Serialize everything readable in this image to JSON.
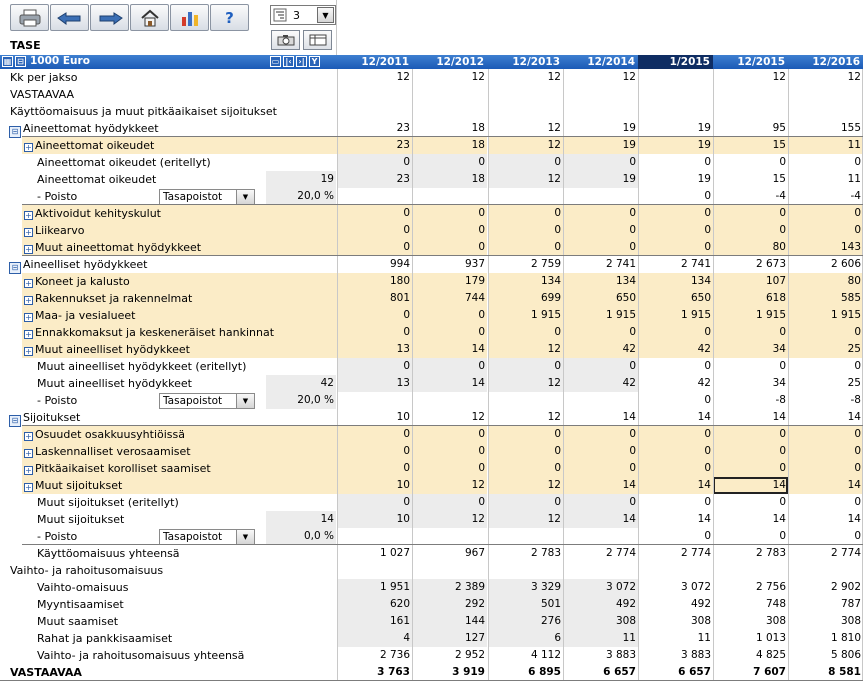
{
  "toolbar": {
    "buttons": [
      {
        "name": "print-button",
        "icon": "printer-icon"
      },
      {
        "name": "back-button",
        "icon": "hand-left-icon"
      },
      {
        "name": "forward-button",
        "icon": "hand-right-icon"
      },
      {
        "name": "home-button",
        "icon": "home-icon"
      },
      {
        "name": "chart-button",
        "icon": "bar-chart-icon"
      },
      {
        "name": "help-button",
        "icon": "help-icon",
        "label": "?"
      }
    ],
    "level_value": "3"
  },
  "title": "TASE",
  "header": {
    "unit": "1000 Euro",
    "columns": [
      "12/2011",
      "12/2012",
      "12/2013",
      "12/2014",
      "1/2015",
      "12/2015",
      "12/2016"
    ]
  },
  "rows": [
    {
      "label": "Kk per jakso",
      "indent": 0,
      "values": [
        "12",
        "12",
        "12",
        "12",
        "",
        "12",
        "12"
      ]
    },
    {
      "label": "VASTAAVAA",
      "indent": 0,
      "values": [
        "",
        "",
        "",
        "",
        "",
        "",
        ""
      ]
    },
    {
      "label": "Käyttöomaisuus ja muut pitkäaikaiset sijoitukset",
      "indent": 0,
      "values": [
        "",
        "",
        "",
        "",
        "",
        "",
        ""
      ]
    },
    {
      "label": "Aineettomat hyödykkeet",
      "indent": 0,
      "icon": "collapse",
      "values": [
        "23",
        "18",
        "12",
        "19",
        "19",
        "95",
        "155"
      ]
    },
    {
      "label": "Aineettomat oikeudet",
      "indent": 1,
      "icon": "expand",
      "bg": "y",
      "values": [
        "23",
        "18",
        "12",
        "19",
        "19",
        "15",
        "11"
      ]
    },
    {
      "label": "Aineettomat oikeudet (eritellyt)",
      "indent": 2,
      "values": [
        "0",
        "0",
        "0",
        "0",
        "0",
        "0",
        "0"
      ]
    },
    {
      "label": "Aineettomat oikeudet",
      "indent": 2,
      "input": "19",
      "values": [
        "23",
        "18",
        "12",
        "19",
        "19",
        "15",
        "11"
      ]
    },
    {
      "label": "- Poisto",
      "indent": 2,
      "dropdown": "Tasapoistot",
      "input": "20,0 %",
      "values": [
        "",
        "",
        "",
        "",
        "0",
        "-4",
        "-4"
      ]
    },
    {
      "label": "Aktivoidut kehityskulut",
      "indent": 1,
      "icon": "expand",
      "bg": "y",
      "values": [
        "0",
        "0",
        "0",
        "0",
        "0",
        "0",
        "0"
      ]
    },
    {
      "label": "Liikearvo",
      "indent": 1,
      "icon": "expand",
      "bg": "y",
      "values": [
        "0",
        "0",
        "0",
        "0",
        "0",
        "0",
        "0"
      ]
    },
    {
      "label": "Muut aineettomat hyödykkeet",
      "indent": 1,
      "icon": "expand",
      "bg": "y",
      "values": [
        "0",
        "0",
        "0",
        "0",
        "0",
        "80",
        "143"
      ]
    },
    {
      "label": "Aineelliset hyödykkeet",
      "indent": 0,
      "icon": "collapse",
      "values": [
        "994",
        "937",
        "2 759",
        "2 741",
        "2 741",
        "2 673",
        "2 606"
      ]
    },
    {
      "label": "Koneet ja kalusto",
      "indent": 1,
      "icon": "expand",
      "bg": "y",
      "values": [
        "180",
        "179",
        "134",
        "134",
        "134",
        "107",
        "80"
      ]
    },
    {
      "label": "Rakennukset ja rakennelmat",
      "indent": 1,
      "icon": "expand",
      "bg": "y",
      "values": [
        "801",
        "744",
        "699",
        "650",
        "650",
        "618",
        "585"
      ]
    },
    {
      "label": "Maa- ja vesialueet",
      "indent": 1,
      "icon": "expand",
      "bg": "y",
      "values": [
        "0",
        "0",
        "1 915",
        "1 915",
        "1 915",
        "1 915",
        "1 915"
      ]
    },
    {
      "label": "Ennakkomaksut ja keskeneräiset hankinnat",
      "indent": 1,
      "icon": "expand",
      "bg": "y",
      "values": [
        "0",
        "0",
        "0",
        "0",
        "0",
        "0",
        "0"
      ]
    },
    {
      "label": "Muut aineelliset hyödykkeet",
      "indent": 1,
      "icon": "expand",
      "bg": "y",
      "values": [
        "13",
        "14",
        "12",
        "42",
        "42",
        "34",
        "25"
      ]
    },
    {
      "label": "Muut aineelliset hyödykkeet (eritellyt)",
      "indent": 2,
      "values": [
        "0",
        "0",
        "0",
        "0",
        "0",
        "0",
        "0"
      ]
    },
    {
      "label": "Muut aineelliset hyödykkeet",
      "indent": 2,
      "input": "42",
      "values": [
        "13",
        "14",
        "12",
        "42",
        "42",
        "34",
        "25"
      ]
    },
    {
      "label": "- Poisto",
      "indent": 2,
      "dropdown": "Tasapoistot",
      "input": "20,0 %",
      "values": [
        "",
        "",
        "",
        "",
        "0",
        "-8",
        "-8"
      ]
    },
    {
      "label": "Sijoitukset",
      "indent": 0,
      "icon": "collapse",
      "values": [
        "10",
        "12",
        "12",
        "14",
        "14",
        "14",
        "14"
      ]
    },
    {
      "label": "Osuudet osakkuusyhtiöissä",
      "indent": 1,
      "icon": "expand",
      "bg": "y",
      "values": [
        "0",
        "0",
        "0",
        "0",
        "0",
        "0",
        "0"
      ]
    },
    {
      "label": "Laskennalliset verosaamiset",
      "indent": 1,
      "icon": "expand",
      "bg": "y",
      "values": [
        "0",
        "0",
        "0",
        "0",
        "0",
        "0",
        "0"
      ]
    },
    {
      "label": "Pitkäaikaiset korolliset saamiset",
      "indent": 1,
      "icon": "expand",
      "bg": "y",
      "values": [
        "0",
        "0",
        "0",
        "0",
        "0",
        "0",
        "0"
      ]
    },
    {
      "label": "Muut sijoitukset",
      "indent": 1,
      "icon": "expand",
      "bg": "y",
      "values": [
        "10",
        "12",
        "12",
        "14",
        "14",
        "14",
        "14"
      ]
    },
    {
      "label": "Muut sijoitukset (eritellyt)",
      "indent": 2,
      "values": [
        "0",
        "0",
        "0",
        "0",
        "0",
        "0",
        "0"
      ]
    },
    {
      "label": "Muut sijoitukset",
      "indent": 2,
      "input": "14",
      "values": [
        "10",
        "12",
        "12",
        "14",
        "14",
        "14",
        "14"
      ]
    },
    {
      "label": "- Poisto",
      "indent": 2,
      "dropdown": "Tasapoistot",
      "input": "0,0 %",
      "values": [
        "",
        "",
        "",
        "",
        "0",
        "0",
        "0"
      ]
    },
    {
      "label": "Käyttöomaisuus yhteensä",
      "indent": 2,
      "values": [
        "1 027",
        "967",
        "2 783",
        "2 774",
        "2 774",
        "2 783",
        "2 774"
      ]
    },
    {
      "label": "Vaihto- ja rahoitusomaisuus",
      "indent": 0,
      "values": [
        "",
        "",
        "",
        "",
        "",
        "",
        ""
      ]
    },
    {
      "label": "Vaihto-omaisuus",
      "indent": 2,
      "values": [
        "1 951",
        "2 389",
        "3 329",
        "3 072",
        "3 072",
        "2 756",
        "2 902"
      ]
    },
    {
      "label": "Myyntisaamiset",
      "indent": 2,
      "values": [
        "620",
        "292",
        "501",
        "492",
        "492",
        "748",
        "787"
      ]
    },
    {
      "label": "Muut saamiset",
      "indent": 2,
      "values": [
        "161",
        "144",
        "276",
        "308",
        "308",
        "308",
        "308"
      ]
    },
    {
      "label": "Rahat ja pankkisaamiset",
      "indent": 2,
      "values": [
        "4",
        "127",
        "6",
        "11",
        "11",
        "1 013",
        "1 810"
      ]
    },
    {
      "label": "Vaihto- ja rahoitusomaisuus yhteensä",
      "indent": 2,
      "values": [
        "2 736",
        "2 952",
        "4 112",
        "3 883",
        "3 883",
        "4 825",
        "5 806"
      ]
    },
    {
      "label": "VASTAAVAA",
      "indent": 0,
      "bold": true,
      "values": [
        "3 763",
        "3 919",
        "6 895",
        "6 657",
        "6 657",
        "7 607",
        "8 581"
      ]
    }
  ]
}
